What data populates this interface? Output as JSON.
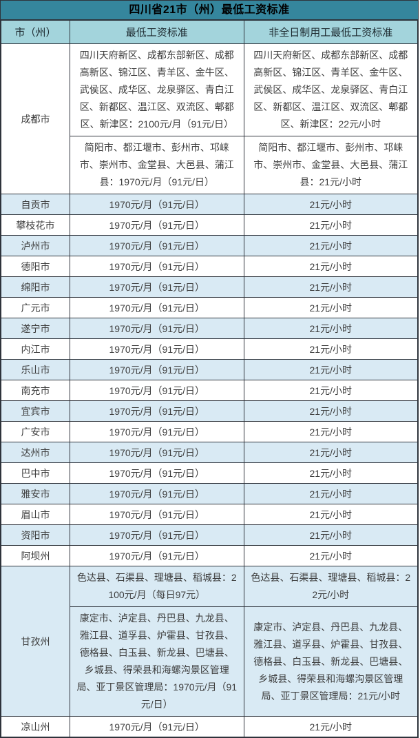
{
  "title": "四川省21市（州）最低工资标准",
  "colors": {
    "title_bg": "#35869D",
    "header_bg": "#A3D4DC",
    "row_bg": "#FFFFFF",
    "row_alt_bg": "#D9EAF4",
    "border": "#2E333B",
    "text": "#3D3D3D",
    "title_text": "#000000"
  },
  "table": {
    "columns": [
      {
        "key": "city",
        "label": "市（州）"
      },
      {
        "key": "min_wage",
        "label": "最低工资标准"
      },
      {
        "key": "part_time",
        "label": "非全日制用工最低工资标准"
      }
    ],
    "rows": [
      {
        "city": "成都市",
        "entries": [
          {
            "min_wage": "四川天府新区、成都东部新区、成都高新区、锦江区、青羊区、金牛区、武侯区、成华区、龙泉驿区、青白江区、新都区、温江区、双流区、郫都区、新津区：2100元/月（91元/日）",
            "part_time": "四川天府新区、成都东部新区、成都高新区、锦江区、青羊区、金牛区、武侯区、成华区、龙泉驿区、青白江区、新都区、温江区、双流区、郫都区、新津区：22元/小时"
          },
          {
            "min_wage": "简阳市、都江堰市、彭州市、邛崃市、崇州市、金堂县、大邑县、蒲江县：1970元/月（91元/日）",
            "part_time": "简阳市、都江堰市、彭州市、邛崃市、崇州市、金堂县、大邑县、蒲江县：21元/小时"
          }
        ]
      },
      {
        "city": "自贡市",
        "entries": [
          {
            "min_wage": "1970元/月（91元/日）",
            "part_time": "21元/小时"
          }
        ]
      },
      {
        "city": "攀枝花市",
        "entries": [
          {
            "min_wage": "1970元/月（91元/日）",
            "part_time": "21元/小时"
          }
        ]
      },
      {
        "city": "泸州市",
        "entries": [
          {
            "min_wage": "1970元/月（91元/日）",
            "part_time": "21元/小时"
          }
        ]
      },
      {
        "city": "德阳市",
        "entries": [
          {
            "min_wage": "1970元/月（91元/日）",
            "part_time": "21元/小时"
          }
        ]
      },
      {
        "city": "绵阳市",
        "entries": [
          {
            "min_wage": "1970元/月（91元/日）",
            "part_time": "21元/小时"
          }
        ]
      },
      {
        "city": "广元市",
        "entries": [
          {
            "min_wage": "1970元/月（91元/日）",
            "part_time": "21元/小时"
          }
        ]
      },
      {
        "city": "遂宁市",
        "entries": [
          {
            "min_wage": "1970元/月（91元/日）",
            "part_time": "21元/小时"
          }
        ]
      },
      {
        "city": "内江市",
        "entries": [
          {
            "min_wage": "1970元/月（91元/日）",
            "part_time": "21元/小时"
          }
        ]
      },
      {
        "city": "乐山市",
        "entries": [
          {
            "min_wage": "1970元/月（91元/日）",
            "part_time": "21元/小时"
          }
        ]
      },
      {
        "city": "南充市",
        "entries": [
          {
            "min_wage": "1970元/月（91元/日）",
            "part_time": "21元/小时"
          }
        ]
      },
      {
        "city": "宜宾市",
        "entries": [
          {
            "min_wage": "1970元/月（91元/日）",
            "part_time": "21元/小时"
          }
        ]
      },
      {
        "city": "广安市",
        "entries": [
          {
            "min_wage": "1970元/月（91元/日）",
            "part_time": "21元/小时"
          }
        ]
      },
      {
        "city": "达州市",
        "entries": [
          {
            "min_wage": "1970元/月（91元/日）",
            "part_time": "21元/小时"
          }
        ]
      },
      {
        "city": "巴中市",
        "entries": [
          {
            "min_wage": "1970元/月（91元/日）",
            "part_time": "21元/小时"
          }
        ]
      },
      {
        "city": "雅安市",
        "entries": [
          {
            "min_wage": "1970元/月（91元/日）",
            "part_time": "21元/小时"
          }
        ]
      },
      {
        "city": "眉山市",
        "entries": [
          {
            "min_wage": "1970元/月（91元/日）",
            "part_time": "21元/小时"
          }
        ]
      },
      {
        "city": "资阳市",
        "entries": [
          {
            "min_wage": "1970元/月（91元/日）",
            "part_time": "21元/小时"
          }
        ]
      },
      {
        "city": "阿坝州",
        "entries": [
          {
            "min_wage": "1970元/月（91元/日）",
            "part_time": "21元/小时"
          }
        ]
      },
      {
        "city": "甘孜州",
        "entries": [
          {
            "min_wage": "色达县、石渠县、理塘县、稻城县：2100元/月（每日97元）",
            "part_time": "色达县、石渠县、理塘县、稻城县：22元/小时"
          },
          {
            "min_wage": "康定市、泸定县、丹巴县、九龙县、雅江县、道孚县、炉霍县、甘孜县、德格县、白玉县、新龙县、巴塘县、乡城县、得荣县和海螺沟景区管理局、亚丁景区管理局：1970元/月（91元/日）",
            "part_time": "康定市、泸定县、丹巴县、九龙县、雅江县、道孚县、炉霍县、甘孜县、德格县、白玉县、新龙县、巴塘县、乡城县、得荣县和海螺沟景区管理局、亚丁景区管理局：21元/小时"
          }
        ]
      },
      {
        "city": "凉山州",
        "entries": [
          {
            "min_wage": "1970元/月（91元/日）",
            "part_time": "21元/小时"
          }
        ]
      }
    ]
  }
}
